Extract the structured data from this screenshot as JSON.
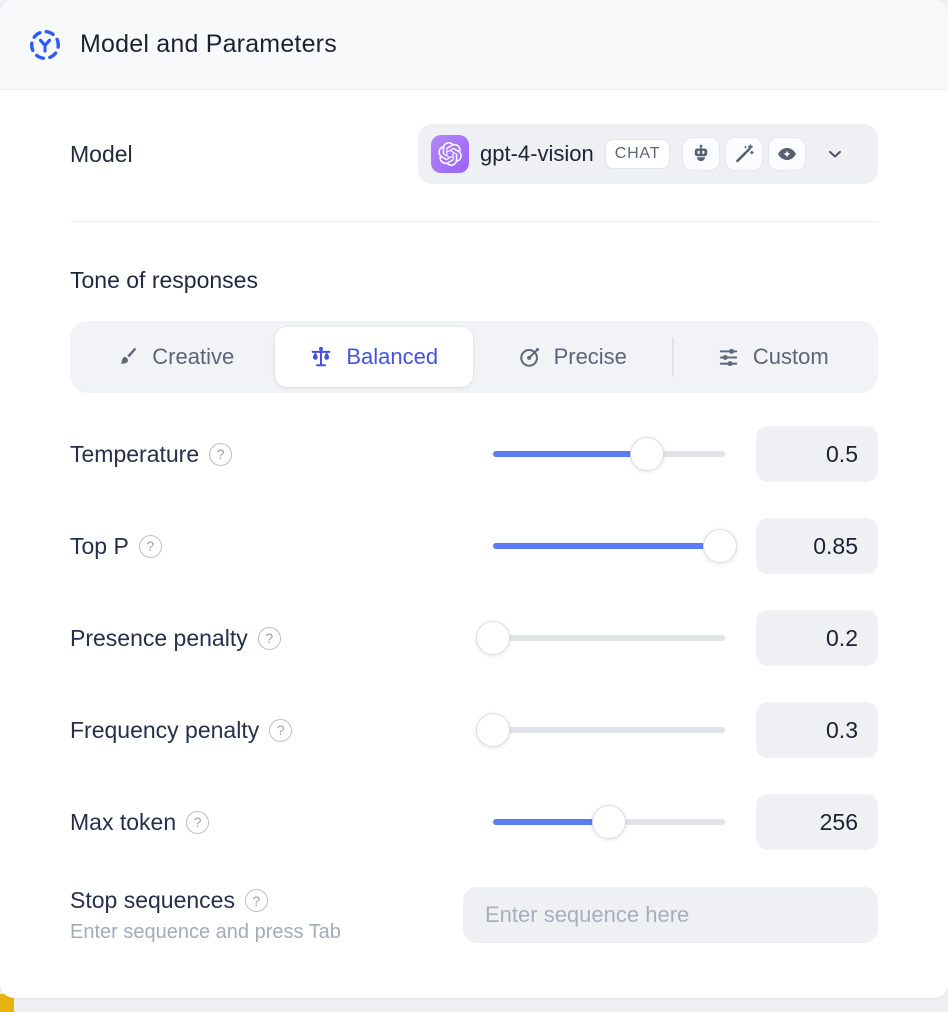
{
  "header": {
    "title": "Model and Parameters"
  },
  "model_row": {
    "label": "Model",
    "selected_model": "gpt-4-vision",
    "type_badge": "CHAT",
    "capability_icons": [
      "robot-icon",
      "magic-wand-icon",
      "vision-eye-icon"
    ]
  },
  "tone": {
    "heading": "Tone of responses",
    "tabs": [
      {
        "label": "Creative",
        "icon": "paintbrush-icon",
        "selected": false
      },
      {
        "label": "Balanced",
        "icon": "balance-scale-icon",
        "selected": true
      },
      {
        "label": "Precise",
        "icon": "target-dart-icon",
        "selected": false
      },
      {
        "label": "Custom",
        "icon": "sliders-icon",
        "selected": false
      }
    ]
  },
  "parameters": [
    {
      "label": "Temperature",
      "value": "0.5",
      "fill_pct": 66.5
    },
    {
      "label": "Top P",
      "value": "0.85",
      "fill_pct": 98
    },
    {
      "label": "Presence penalty",
      "value": "0.2",
      "fill_pct": 0
    },
    {
      "label": "Frequency penalty",
      "value": "0.3",
      "fill_pct": 0
    },
    {
      "label": "Max token",
      "value": "256",
      "fill_pct": 50
    }
  ],
  "stop_sequences": {
    "label": "Stop sequences",
    "hint": "Enter sequence and press Tab",
    "placeholder": "Enter sequence here",
    "value": ""
  },
  "ui": {
    "help_glyph": "?"
  },
  "colors": {
    "accent_text": "#4353e0",
    "slider_fill": "#5b7bf7",
    "header_icon_blue": "#2f5cf0",
    "openai_logo_bg": "#9f6cf7",
    "control_bg": "#eef0f4",
    "header_bg": "#f8f9fb",
    "bottom_accent_yellow": "#e7b310"
  }
}
